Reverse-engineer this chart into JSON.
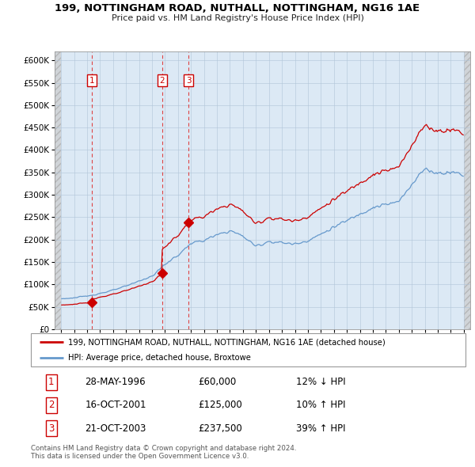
{
  "title": "199, NOTTINGHAM ROAD, NUTHALL, NOTTINGHAM, NG16 1AE",
  "subtitle": "Price paid vs. HM Land Registry's House Price Index (HPI)",
  "xlim": [
    1993.5,
    2025.5
  ],
  "ylim": [
    0,
    620000
  ],
  "ytick_labels": [
    "£0",
    "£50K",
    "£100K",
    "£150K",
    "£200K",
    "£250K",
    "£300K",
    "£350K",
    "£400K",
    "£450K",
    "£500K",
    "£550K",
    "£600K"
  ],
  "ytick_values": [
    0,
    50000,
    100000,
    150000,
    200000,
    250000,
    300000,
    350000,
    400000,
    450000,
    500000,
    550000,
    600000
  ],
  "sale_dates": [
    1996.37,
    2001.79,
    2003.81
  ],
  "sale_prices": [
    60000,
    125000,
    237500
  ],
  "sale_labels": [
    "1",
    "2",
    "3"
  ],
  "red_line_color": "#cc0000",
  "hpi_color": "#6699cc",
  "dashed_line_color": "#dd4444",
  "legend_line1": "199, NOTTINGHAM ROAD, NUTHALL, NOTTINGHAM, NG16 1AE (detached house)",
  "legend_line2": "HPI: Average price, detached house, Broxtowe",
  "table_rows": [
    [
      "1",
      "28-MAY-1996",
      "£60,000",
      "12% ↓ HPI"
    ],
    [
      "2",
      "16-OCT-2001",
      "£125,000",
      "10% ↑ HPI"
    ],
    [
      "3",
      "21-OCT-2003",
      "£237,500",
      "39% ↑ HPI"
    ]
  ],
  "footnote": "Contains HM Land Registry data © Crown copyright and database right 2024.\nThis data is licensed under the Open Government Licence v3.0.",
  "plot_bg_color": "#dce9f5",
  "hatch_bg_color": "#c8c8c8"
}
